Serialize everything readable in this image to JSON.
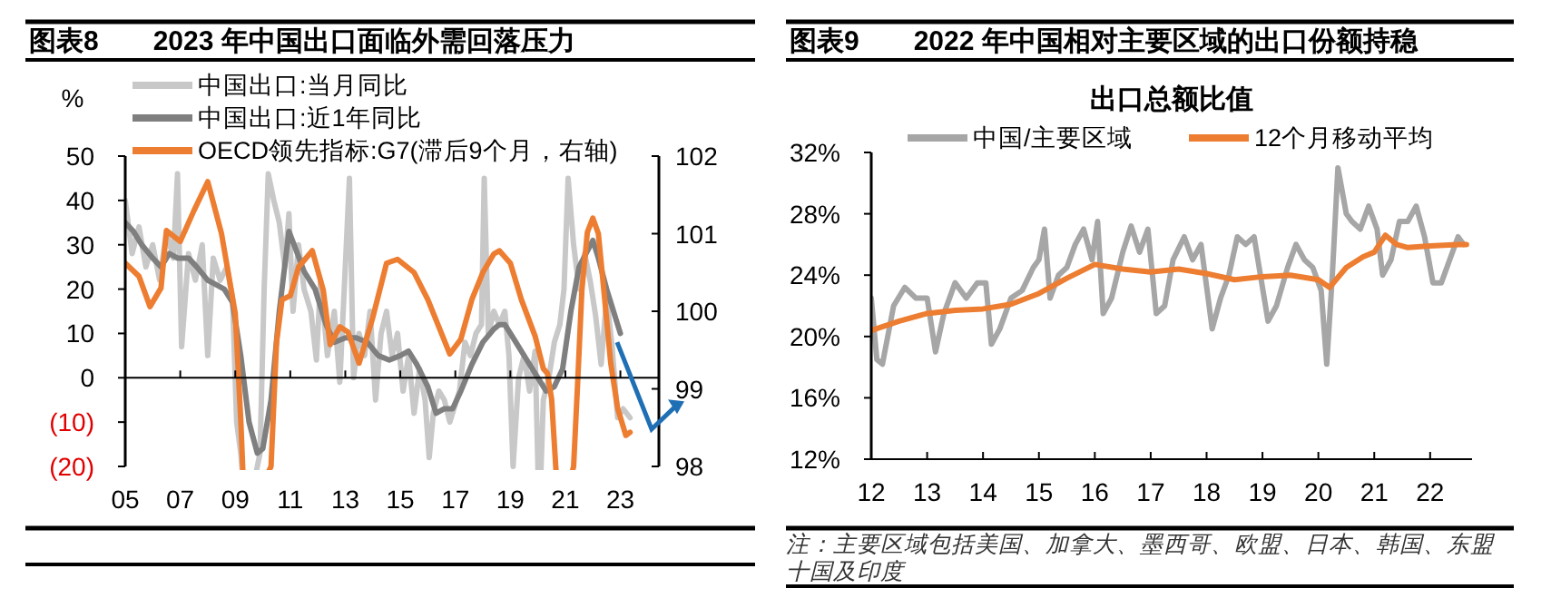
{
  "chart_data": [
    {
      "type": "line",
      "title": "图表8　　2023 年中国出口面临外需回落压力",
      "ylabel": "%",
      "legend": "top left",
      "xlim": [
        2005,
        2024.4
      ],
      "xticks": [
        {
          "value": 2005,
          "label": "05"
        },
        {
          "value": 2007,
          "label": "07"
        },
        {
          "value": 2009,
          "label": "09"
        },
        {
          "value": 2011,
          "label": "11"
        },
        {
          "value": 2013,
          "label": "13"
        },
        {
          "value": 2015,
          "label": "15"
        },
        {
          "value": 2017,
          "label": "17"
        },
        {
          "value": 2019,
          "label": "19"
        },
        {
          "value": 2021,
          "label": "21"
        },
        {
          "value": 2023,
          "label": "23"
        }
      ],
      "ylim": [
        -20,
        50
      ],
      "yticks": [
        {
          "value": -20,
          "label": "(20)"
        },
        {
          "value": -10,
          "label": "(10)"
        },
        0,
        10,
        20,
        30,
        40,
        50
      ],
      "y2lim": [
        98,
        102
      ],
      "y2ticks": [
        98,
        99,
        100,
        101,
        102
      ],
      "series": [
        {
          "name": "中国出口:当月同比",
          "color": "#c8c8c8",
          "x": [
            2005.0,
            2005.25,
            2005.5,
            2005.75,
            2006.0,
            2006.25,
            2006.5,
            2006.75,
            2006.9,
            2007.05,
            2007.3,
            2007.55,
            2007.8,
            2008.0,
            2008.2,
            2008.45,
            2008.7,
            2008.9,
            2009.05,
            2009.2,
            2009.4,
            2009.9,
            2010.05,
            2010.2,
            2010.4,
            2010.6,
            2010.8,
            2010.95,
            2011.1,
            2011.3,
            2011.5,
            2011.75,
            2011.95,
            2012.1,
            2012.35,
            2012.6,
            2012.8,
            2013.0,
            2013.15,
            2013.3,
            2013.5,
            2013.7,
            2013.9,
            2014.1,
            2014.3,
            2014.5,
            2014.7,
            2014.9,
            2015.1,
            2015.3,
            2015.5,
            2015.7,
            2015.9,
            2016.05,
            2016.2,
            2016.4,
            2016.6,
            2016.8,
            2016.95,
            2017.15,
            2017.35,
            2017.55,
            2017.75,
            2017.95,
            2018.05,
            2018.2,
            2018.4,
            2018.6,
            2018.8,
            2018.95,
            2019.1,
            2019.3,
            2019.5,
            2019.7,
            2019.9,
            2020.05,
            2020.2,
            2020.4,
            2020.6,
            2020.8,
            2020.95,
            2021.1,
            2021.3,
            2021.5,
            2021.7,
            2021.9,
            2022.1,
            2022.3,
            2022.5,
            2022.7,
            2022.9,
            2023.1,
            2023.35
          ],
          "values": [
            40,
            28,
            34,
            25,
            30,
            22,
            33,
            27,
            46,
            7,
            28,
            22,
            30,
            5,
            27,
            22,
            25,
            18,
            -10,
            -17,
            null,
            -17,
            20,
            46,
            40,
            35,
            25,
            37,
            15,
            30,
            20,
            15,
            4,
            22,
            5,
            15,
            -1,
            25,
            45,
            0,
            10,
            5,
            15,
            -5,
            10,
            15,
            5,
            10,
            -3,
            5,
            -8,
            2,
            -5,
            -18,
            -8,
            -3,
            -5,
            -10,
            -7,
            -3,
            8,
            5,
            10,
            12,
            45,
            10,
            15,
            12,
            15,
            5,
            -20,
            0,
            5,
            -3,
            6,
            null,
            -5,
            0,
            8,
            12,
            20,
            45,
            30,
            20,
            28,
            22,
            14,
            3,
            18,
            7,
            -9,
            -7,
            -9
          ]
        },
        {
          "name": "中国出口:近1年同比",
          "color": "#7f7f7f",
          "x": [
            2005.0,
            2005.3,
            2005.6,
            2006.0,
            2006.3,
            2006.6,
            2006.9,
            2007.3,
            2007.6,
            2008.0,
            2008.3,
            2008.6,
            2008.9,
            2009.2,
            2009.5,
            2009.8,
            2010.0,
            2010.3,
            2010.6,
            2010.95,
            2011.2,
            2011.5,
            2011.9,
            2012.3,
            2012.6,
            2013.0,
            2013.4,
            2013.8,
            2014.2,
            2014.6,
            2015.0,
            2015.3,
            2015.6,
            2016.0,
            2016.3,
            2016.6,
            2016.9,
            2017.2,
            2017.6,
            2018.0,
            2018.4,
            2018.6,
            2018.8,
            2019.2,
            2019.6,
            2019.9,
            2020.3,
            2020.6,
            2020.9,
            2021.2,
            2021.5,
            2022.0,
            2022.2,
            2022.5,
            2023.0
          ],
          "values": [
            35,
            33,
            30,
            27,
            25,
            28,
            27,
            27,
            25,
            22,
            21,
            20,
            17,
            5,
            -10,
            -17,
            -16,
            -5,
            15,
            33,
            29,
            24,
            20,
            12,
            8,
            9,
            9,
            8,
            5,
            4,
            5,
            6,
            3,
            -2,
            -8,
            -7,
            -7,
            -3,
            3,
            8,
            11,
            12,
            12,
            8,
            4,
            1,
            -3,
            -2,
            2,
            15,
            25,
            31,
            27,
            20,
            10
          ]
        },
        {
          "name": "OECD领先指标:G7(滞后9个月，右轴)",
          "color": "#ed7d31",
          "axis": "y2",
          "x": [
            2005.0,
            2005.5,
            2005.9,
            2006.3,
            2006.5,
            2007.0,
            2007.5,
            2008.0,
            2008.5,
            2009.0,
            2009.2,
            2009.35,
            2010.3,
            2010.5,
            2010.7,
            2011.0,
            2011.3,
            2011.8,
            2012.2,
            2012.45,
            2012.8,
            2013.1,
            2013.5,
            2014.0,
            2014.5,
            2014.9,
            2015.5,
            2016.0,
            2016.4,
            2016.8,
            2017.2,
            2017.6,
            2018.0,
            2018.4,
            2018.6,
            2019.0,
            2019.4,
            2019.9,
            2020.2,
            2020.35,
            2020.5,
            2020.65,
            2020.8,
            2021.3,
            2021.45,
            2021.6,
            2021.8,
            2022.0,
            2022.2,
            2022.4,
            2022.65,
            2022.9,
            2023.2,
            2023.35
          ],
          "values": [
            100.62,
            100.45,
            100.06,
            100.3,
            101.04,
            100.9,
            101.3,
            101.67,
            101.0,
            99.97,
            98.6,
            null,
            98.0,
            99.6,
            100.15,
            100.2,
            100.57,
            100.78,
            100.27,
            99.57,
            99.8,
            99.73,
            99.33,
            99.92,
            100.62,
            100.67,
            100.5,
            100.15,
            99.8,
            99.45,
            99.64,
            100.15,
            100.5,
            100.74,
            100.78,
            100.62,
            100.15,
            99.68,
            99.26,
            99.2,
            98.87,
            98.0,
            null,
            98.0,
            99.1,
            100.27,
            101.02,
            101.2,
            101.0,
            100.27,
            99.33,
            98.75,
            98.4,
            98.44
          ]
        }
      ]
    },
    {
      "type": "line",
      "title": "图表9　　2022 年中国相对主要区域的出口份额持稳",
      "subtitle": "出口总额比值",
      "legend": "top",
      "annotations": [
        "注：主要区域包括美国、加拿大、墨西哥、欧盟、日本、韩国、东盟十国及印度"
      ],
      "xlim": [
        2012,
        2022.75
      ],
      "xticks": [
        {
          "value": 2012,
          "label": "12"
        },
        {
          "value": 2013,
          "label": "13"
        },
        {
          "value": 2014,
          "label": "14"
        },
        {
          "value": 2015,
          "label": "15"
        },
        {
          "value": 2016,
          "label": "16"
        },
        {
          "value": 2017,
          "label": "17"
        },
        {
          "value": 2018,
          "label": "18"
        },
        {
          "value": 2019,
          "label": "19"
        },
        {
          "value": 2020,
          "label": "20"
        },
        {
          "value": 2021,
          "label": "21"
        },
        {
          "value": 2022,
          "label": "22"
        }
      ],
      "ylim": [
        12,
        32
      ],
      "yticks": [
        {
          "value": 12,
          "label": "12%"
        },
        {
          "value": 16,
          "label": "16%"
        },
        {
          "value": 20,
          "label": "20%"
        },
        {
          "value": 24,
          "label": "24%"
        },
        {
          "value": 28,
          "label": "28%"
        },
        {
          "value": 32,
          "label": "32%"
        }
      ],
      "series": [
        {
          "name": "中国/主要区域",
          "color": "#a6a6a6",
          "x": [
            2012.0,
            2012.1,
            2012.2,
            2012.4,
            2012.6,
            2012.8,
            2013.0,
            2013.15,
            2013.3,
            2013.5,
            2013.7,
            2013.9,
            2014.05,
            2014.15,
            2014.3,
            2014.5,
            2014.7,
            2014.9,
            2015.0,
            2015.1,
            2015.2,
            2015.35,
            2015.5,
            2015.65,
            2015.8,
            2015.95,
            2016.05,
            2016.15,
            2016.3,
            2016.5,
            2016.65,
            2016.8,
            2016.95,
            2017.1,
            2017.25,
            2017.4,
            2017.6,
            2017.75,
            2017.9,
            2018.1,
            2018.25,
            2018.4,
            2018.55,
            2018.7,
            2018.85,
            2019.1,
            2019.25,
            2019.45,
            2019.6,
            2019.75,
            2019.9,
            2020.05,
            2020.15,
            2020.25,
            2020.35,
            2020.5,
            2020.6,
            2020.75,
            2020.9,
            2021.05,
            2021.15,
            2021.3,
            2021.45,
            2021.6,
            2021.75,
            2021.9,
            2022.05,
            2022.2,
            2022.35,
            2022.5,
            2022.6
          ],
          "values": [
            22.5,
            18.5,
            18.2,
            22,
            23.2,
            22.5,
            22.5,
            19,
            21.5,
            23.5,
            22.5,
            23.5,
            23.5,
            19.5,
            20.5,
            22.5,
            23,
            24.5,
            25,
            27,
            22.5,
            24,
            24.5,
            26,
            27,
            25,
            27.5,
            21.5,
            22.5,
            25.5,
            27.2,
            25.5,
            27,
            21.5,
            22,
            25,
            26.5,
            25,
            26,
            20.5,
            22.5,
            24,
            26.5,
            26,
            26.5,
            21,
            22,
            24.5,
            26,
            25,
            24.5,
            23,
            18.2,
            24,
            31,
            28,
            27.5,
            27,
            28.5,
            27,
            24,
            25,
            27.5,
            27.5,
            28.5,
            26.5,
            23.5,
            23.5,
            25,
            26.5,
            26
          ]
        },
        {
          "name": "12个月移动平均",
          "color": "#ed7d31",
          "x": [
            2012.0,
            2012.5,
            2013.0,
            2013.5,
            2014.0,
            2014.5,
            2015.0,
            2015.5,
            2016.0,
            2016.5,
            2017.0,
            2017.5,
            2018.0,
            2018.5,
            2019.0,
            2019.5,
            2020.0,
            2020.2,
            2020.5,
            2020.8,
            2021.0,
            2021.2,
            2021.4,
            2021.6,
            2022.0,
            2022.5,
            2022.65
          ],
          "values": [
            20.4,
            21.0,
            21.5,
            21.7,
            21.8,
            22.1,
            22.8,
            23.8,
            24.7,
            24.4,
            24.2,
            24.4,
            24.1,
            23.7,
            23.9,
            24.0,
            23.7,
            23.2,
            24.5,
            25.2,
            25.5,
            26.6,
            26.0,
            25.8,
            25.9,
            26.0,
            26.0
          ]
        }
      ]
    }
  ]
}
